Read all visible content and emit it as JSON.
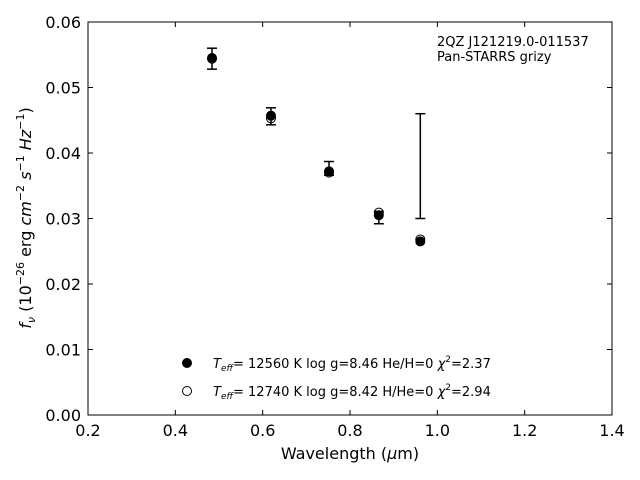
{
  "chart_data": {
    "type": "scatter",
    "annotation_lines": [
      "2QZ J121219.0-011537",
      "Pan-STARRS grizy"
    ],
    "xlabel": "Wavelength (μm)",
    "ylabel": "f_ν (10^-26 erg cm^-2 s^-1 Hz^-1)",
    "xlim": [
      0.2,
      1.4
    ],
    "ylim": [
      0.0,
      0.06
    ],
    "xticks": [
      "0.2",
      "0.4",
      "0.6",
      "0.8",
      "1.0",
      "1.2",
      "1.4"
    ],
    "yticks": [
      "0.00",
      "0.01",
      "0.02",
      "0.03",
      "0.04",
      "0.05",
      "0.06"
    ],
    "grid": false,
    "legend_position": "bottom-center",
    "observed": [
      {
        "x": 0.484,
        "y": 0.0544,
        "ylo": 0.0528,
        "yhi": 0.056
      },
      {
        "x": 0.619,
        "y": 0.0456,
        "ylo": 0.0443,
        "yhi": 0.0469
      },
      {
        "x": 0.752,
        "y": 0.0372,
        "ylo": 0.0366,
        "yhi": 0.0387
      },
      {
        "x": 0.866,
        "y": 0.0305,
        "ylo": 0.0292,
        "yhi": 0.0311
      },
      {
        "x": 0.961,
        "y": 0.038,
        "ylo": 0.03,
        "yhi": 0.046
      }
    ],
    "series": [
      {
        "name": "T_eff= 12560 K  log g=8.46  He/H=0  χ²=2.37",
        "marker": "filled",
        "x": [
          0.484,
          0.619,
          0.752,
          0.866,
          0.961
        ],
        "y": [
          0.0544,
          0.0457,
          0.0372,
          0.0305,
          0.0265
        ]
      },
      {
        "name": "T_eff= 12740 K  log g=8.42  H/He=0  χ²=2.94",
        "marker": "open",
        "x": [
          0.484,
          0.619,
          0.752,
          0.866,
          0.961
        ],
        "y": [
          0.0545,
          0.0453,
          0.037,
          0.0309,
          0.0268
        ]
      }
    ]
  }
}
